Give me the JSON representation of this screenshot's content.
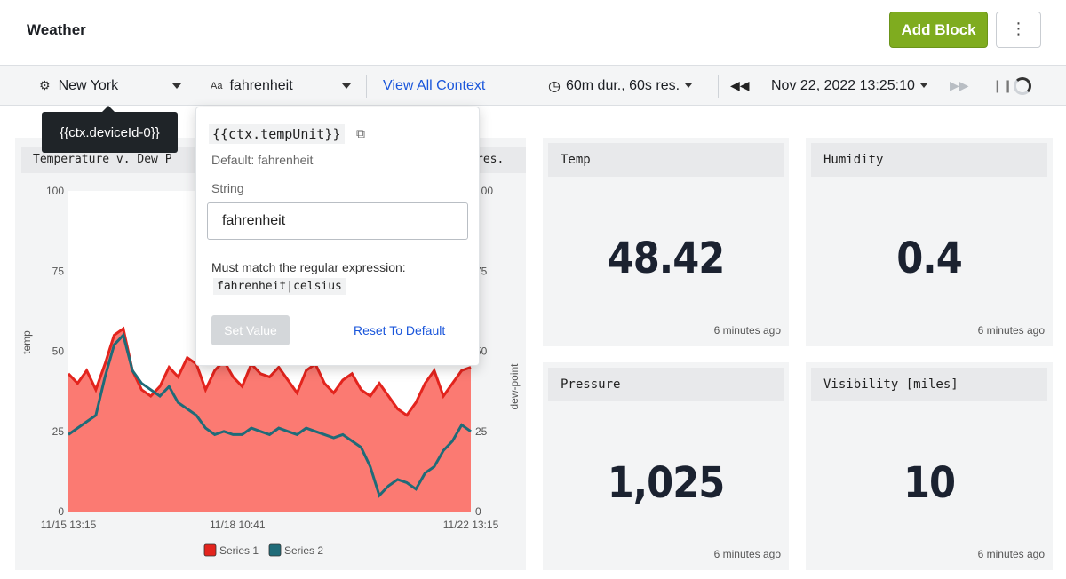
{
  "header": {
    "title": "Weather",
    "add_block_label": "Add Block",
    "more_icon": "⋮"
  },
  "toolbar": {
    "device_value": "New York",
    "device_icon": "chip-icon",
    "unit_value": "fahrenheit",
    "unit_prefix": "Aa",
    "view_all_label": "View All Context",
    "duration_label": "60m dur., 60s res.",
    "timestamp_label": "Nov 22, 2022 13:25:10"
  },
  "tooltip": {
    "text": "{{ctx.deviceId-0}}"
  },
  "popover": {
    "variable": "{{ctx.tempUnit}}",
    "default_text": "Default: fahrenheit",
    "type_text": "String",
    "input_value": "fahrenheit",
    "rule_text": "Must match the regular expression:",
    "regex": "fahrenheit|celsius",
    "set_label": "Set Value",
    "reset_label": "Reset To Default"
  },
  "stats": [
    {
      "title": "Temp",
      "value": "48.42",
      "time": "6 minutes ago"
    },
    {
      "title": "Humidity",
      "value": "0.4",
      "time": "6 minutes ago"
    },
    {
      "title": "Pressure",
      "value": "1,025",
      "time": "6 minutes ago"
    },
    {
      "title": "Visibility [miles]",
      "value": "10",
      "time": "6 minutes ago"
    }
  ],
  "chart_data": {
    "type": "area",
    "title": "Temperature v. Dew P",
    "title_tail": "res.",
    "ylabel": "temp",
    "y2label": "dew-point",
    "ylim": [
      0,
      100
    ],
    "y_ticks": [
      "100",
      "75",
      "50",
      "25",
      "0"
    ],
    "x_ticks": [
      "11/15 13:15",
      "11/18 10:41",
      "11/22 13:15"
    ],
    "colors": {
      "series1_fill": "#fb7a72",
      "series1_line": "#e3241d",
      "series2_line": "#1f6b78"
    },
    "series": [
      {
        "name": "Series 1",
        "values": [
          43,
          40,
          44,
          38,
          46,
          55,
          57,
          44,
          38,
          36,
          39,
          45,
          42,
          48,
          46,
          38,
          44,
          47,
          42,
          39,
          46,
          43,
          42,
          45,
          41,
          37,
          44,
          46,
          40,
          37,
          41,
          43,
          38,
          36,
          40,
          36,
          32,
          30,
          34,
          40,
          44,
          36,
          40,
          44,
          45
        ]
      },
      {
        "name": "Series 2",
        "values": [
          24,
          26,
          28,
          30,
          42,
          52,
          55,
          44,
          40,
          38,
          36,
          39,
          34,
          32,
          30,
          26,
          24,
          25,
          24,
          24,
          26,
          25,
          24,
          26,
          25,
          24,
          26,
          25,
          24,
          23,
          24,
          22,
          20,
          14,
          5,
          8,
          10,
          9,
          7,
          12,
          14,
          19,
          22,
          27,
          25
        ]
      }
    ]
  }
}
